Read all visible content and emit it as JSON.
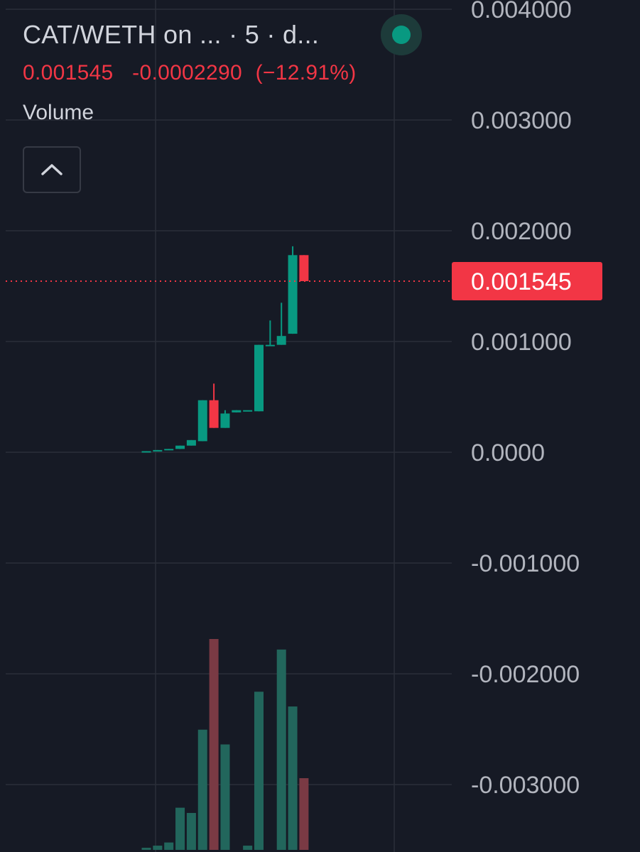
{
  "header": {
    "symbol_title": "CAT/WETH on ... · 5 · d...",
    "last_price": "0.001545",
    "change": "-0.0002290",
    "change_pct": "(−12.91%)",
    "status_color": "#089981"
  },
  "volume_pane": {
    "label": "Volume",
    "collapse_icon": "chevron-up-icon"
  },
  "colors": {
    "background": "#161a25",
    "grid": "#2a2e39",
    "up": "#089981",
    "down": "#f23645",
    "up_volume": "#22665c",
    "down_volume": "#7a3a44",
    "axis_text": "#b2b5be"
  },
  "chart_data": {
    "type": "candlestick",
    "y_axis": {
      "ticks": [
        0.004,
        0.003,
        0.002,
        0.001,
        0.0,
        -0.001,
        -0.002,
        -0.003
      ],
      "tick_labels": [
        "0.004000",
        "0.003000",
        "0.002000",
        "0.001000",
        "0.0000",
        "-0.001000",
        "-0.002000",
        "-0.003000"
      ],
      "range": [
        -0.0035,
        0.0041
      ]
    },
    "last_price": 0.001545,
    "last_price_label": "0.001545",
    "candles": [
      {
        "o": 0.0,
        "h": 1e-05,
        "l": 0.0,
        "c": 1e-05
      },
      {
        "o": 1e-05,
        "h": 2e-05,
        "l": 1e-05,
        "c": 2e-05
      },
      {
        "o": 2e-05,
        "h": 3e-05,
        "l": 2e-05,
        "c": 3e-05
      },
      {
        "o": 3e-05,
        "h": 6e-05,
        "l": 3e-05,
        "c": 6e-05
      },
      {
        "o": 6e-05,
        "h": 0.00011,
        "l": 6e-05,
        "c": 0.00011
      },
      {
        "o": 0.0001,
        "h": 0.00047,
        "l": 0.0001,
        "c": 0.00047
      },
      {
        "o": 0.00047,
        "h": 0.00062,
        "l": 0.00022,
        "c": 0.00022
      },
      {
        "o": 0.00022,
        "h": 0.00038,
        "l": 0.00022,
        "c": 0.00035
      },
      {
        "o": 0.00036,
        "h": 0.00038,
        "l": 0.00036,
        "c": 0.00038
      },
      {
        "o": 0.00038,
        "h": 0.00038,
        "l": 0.00038,
        "c": 0.00038
      },
      {
        "o": 0.00037,
        "h": 0.00097,
        "l": 0.00037,
        "c": 0.00097
      },
      {
        "o": 0.00097,
        "h": 0.00119,
        "l": 0.00097,
        "c": 0.00097
      },
      {
        "o": 0.00097,
        "h": 0.00135,
        "l": 0.00097,
        "c": 0.00105
      },
      {
        "o": 0.00107,
        "h": 0.00186,
        "l": 0.00107,
        "c": 0.00178
      },
      {
        "o": 0.00178,
        "h": 0.00178,
        "l": 0.00155,
        "c": 0.001545
      }
    ],
    "volume_relative": [
      0.01,
      0.02,
      0.035,
      0.2,
      0.175,
      0.57,
      1.0,
      0.5,
      0.0,
      0.02,
      0.75,
      0.0,
      0.95,
      0.68,
      0.34
    ],
    "volume_direction": [
      "up",
      "up",
      "up",
      "up",
      "up",
      "up",
      "down",
      "up",
      "up",
      "up",
      "up",
      "up",
      "up",
      "up",
      "down"
    ]
  }
}
